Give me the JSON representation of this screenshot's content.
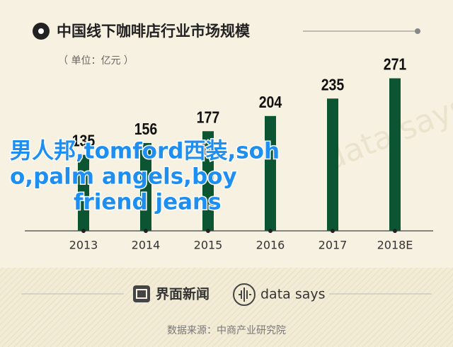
{
  "chart_data": {
    "type": "bar",
    "title": "中国线下咖啡店行业市场规模",
    "subtitle": "（ 单位：亿元 ）",
    "categories": [
      "2013",
      "2014",
      "2015",
      "2016",
      "2017",
      "2018E"
    ],
    "values": [
      135,
      156,
      177,
      204,
      235,
      271
    ],
    "color": "#0b5532"
  },
  "overlay_text": [
    "男人邦,tomford西装,soh",
    "o,palm angels,boy",
    "friend jeans"
  ],
  "footer": {
    "brand": "界面新闻",
    "brand2": "data says",
    "source": "数据来源：中商产业研究院"
  },
  "watermark": "data says"
}
